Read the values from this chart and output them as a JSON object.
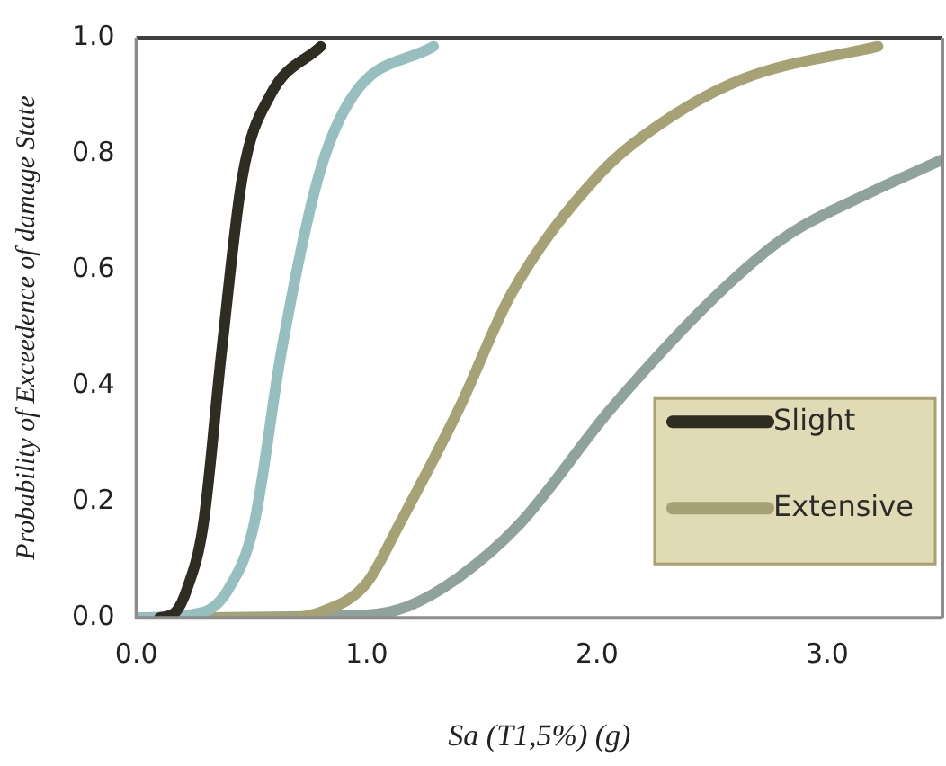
{
  "chart_data": {
    "type": "line",
    "xlabel": "Sa (T1,5%) (g)",
    "ylabel": "Probability of Exceedence of damage State",
    "xlim": [
      0,
      3.5
    ],
    "xticks": [
      {
        "value": 0,
        "label": "0.0"
      },
      {
        "value": 1,
        "label": "1.0"
      },
      {
        "value": 2,
        "label": "2.0"
      },
      {
        "value": 3,
        "label": "3.0"
      }
    ],
    "ylim": [
      0,
      1
    ],
    "yticks": [
      {
        "value": 0,
        "label": "0.0"
      },
      {
        "value": 0.2,
        "label": "0.2"
      },
      {
        "value": 0.4,
        "label": "0.4"
      },
      {
        "value": 0.6,
        "label": "0.6"
      },
      {
        "value": 0.8,
        "label": "0.8"
      },
      {
        "value": 1,
        "label": "1.0"
      }
    ],
    "grid": false,
    "legend": "bottom right",
    "marker": "none",
    "line_style": "solid",
    "series": [
      {
        "name": "Slight",
        "color": "#2f2c22",
        "x": [
          0.1,
          0.17,
          0.22,
          0.29,
          0.37,
          0.46,
          0.58,
          0.8
        ],
        "values": [
          0,
          0.01,
          0.05,
          0.16,
          0.46,
          0.76,
          0.9,
          0.985
        ]
      },
      {
        "color": "#97bfbf",
        "x": [
          0,
          0.29,
          0.4,
          0.51,
          0.63,
          0.79,
          0.94,
          1.29
        ],
        "values": [
          0,
          0.01,
          0.05,
          0.16,
          0.46,
          0.76,
          0.9,
          0.985
        ]
      },
      {
        "name": "Extensive",
        "color": "#a6a276",
        "x": [
          0,
          0.6,
          0.8,
          1.0,
          1.14,
          1.4,
          1.63,
          2.0,
          2.27,
          2.64,
          3.22
        ],
        "values": [
          0,
          0,
          0.01,
          0.06,
          0.16,
          0.36,
          0.56,
          0.76,
          0.85,
          0.93,
          0.985
        ]
      },
      {
        "color": "#8fa39c",
        "x": [
          0,
          1.0,
          1.18,
          1.4,
          1.66,
          2.06,
          2.53,
          2.83,
          3.17,
          3.5
        ],
        "values": [
          0,
          0.005,
          0.02,
          0.07,
          0.16,
          0.36,
          0.56,
          0.66,
          0.73,
          0.79
        ]
      }
    ]
  }
}
